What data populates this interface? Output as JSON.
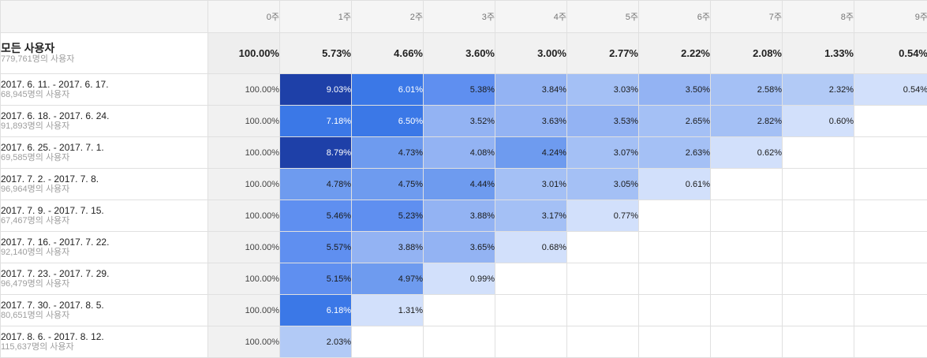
{
  "header": {
    "columns": [
      "0주",
      "1주",
      "2주",
      "3주",
      "4주",
      "5주",
      "6주",
      "7주",
      "8주",
      "9주"
    ]
  },
  "total": {
    "label": "모든 사용자",
    "users": "779,761명의 사용자",
    "values": [
      "100.00%",
      "5.73%",
      "4.66%",
      "3.60%",
      "3.00%",
      "2.77%",
      "2.22%",
      "2.08%",
      "1.33%",
      "0.54%"
    ]
  },
  "cohorts": [
    {
      "label": "2017. 6. 11. - 2017. 6. 17.",
      "users": "68,945명의 사용자",
      "values": [
        "100.00%",
        "9.03%",
        "6.01%",
        "5.38%",
        "3.84%",
        "3.03%",
        "3.50%",
        "2.58%",
        "2.32%",
        "0.54%"
      ]
    },
    {
      "label": "2017. 6. 18. - 2017. 6. 24.",
      "users": "91,893명의 사용자",
      "values": [
        "100.00%",
        "7.18%",
        "6.50%",
        "3.52%",
        "3.63%",
        "3.53%",
        "2.65%",
        "2.82%",
        "0.60%"
      ]
    },
    {
      "label": "2017. 6. 25. - 2017. 7. 1.",
      "users": "69,585명의 사용자",
      "values": [
        "100.00%",
        "8.79%",
        "4.73%",
        "4.08%",
        "4.24%",
        "3.07%",
        "2.63%",
        "0.62%"
      ]
    },
    {
      "label": "2017. 7. 2. - 2017. 7. 8.",
      "users": "96,964명의 사용자",
      "values": [
        "100.00%",
        "4.78%",
        "4.75%",
        "4.44%",
        "3.01%",
        "3.05%",
        "0.61%"
      ]
    },
    {
      "label": "2017. 7. 9. - 2017. 7. 15.",
      "users": "67,467명의 사용자",
      "values": [
        "100.00%",
        "5.46%",
        "5.23%",
        "3.88%",
        "3.17%",
        "0.77%"
      ]
    },
    {
      "label": "2017. 7. 16. - 2017. 7. 22.",
      "users": "92,140명의 사용자",
      "values": [
        "100.00%",
        "5.57%",
        "3.88%",
        "3.65%",
        "0.68%"
      ]
    },
    {
      "label": "2017. 7. 23. - 2017. 7. 29.",
      "users": "96,479명의 사용자",
      "values": [
        "100.00%",
        "5.15%",
        "4.97%",
        "0.99%"
      ]
    },
    {
      "label": "2017. 7. 30. - 2017. 8. 5.",
      "users": "80,651명의 사용자",
      "values": [
        "100.00%",
        "6.18%",
        "1.31%"
      ]
    },
    {
      "label": "2017. 8. 6. - 2017. 8. 12.",
      "users": "115,637명의 사용자",
      "values": [
        "100.00%",
        "2.03%"
      ]
    }
  ],
  "colors": {
    "heat_low": "#d2e0fb",
    "heat_mid": "#6f9bed",
    "heat_high": "#3b78e7",
    "heat_max": "#1e40a8",
    "zero_col_bg": "#f1f1f1"
  }
}
